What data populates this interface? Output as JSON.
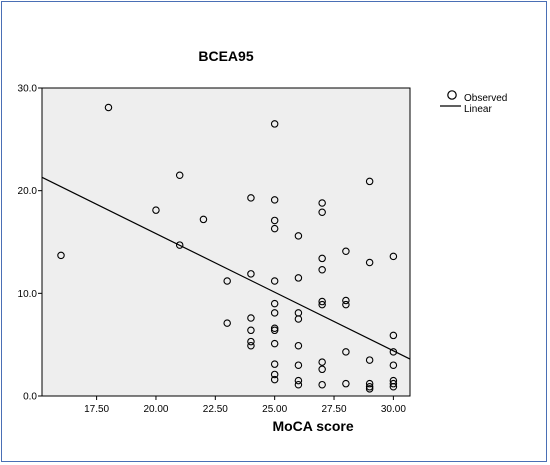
{
  "chart_data": {
    "type": "scatter",
    "title": "BCEA95",
    "xlabel": "MoCA score",
    "ylabel": "",
    "xlim": [
      15.2,
      30.7
    ],
    "ylim": [
      0,
      30
    ],
    "x_ticks": [
      "17.50",
      "20.00",
      "22.50",
      "25.00",
      "27.50",
      "30.00"
    ],
    "y_ticks": [
      "0.0",
      "10.0",
      "20.0",
      "30.0"
    ],
    "grid": false,
    "plot_background": "#eeeeee",
    "legend_position": "top-right",
    "legend": [
      {
        "label": "Observed",
        "symbol": "open-circle"
      },
      {
        "label": "Linear",
        "symbol": "line"
      }
    ],
    "series": [
      {
        "name": "Observed",
        "kind": "points",
        "points": [
          [
            16,
            13.7
          ],
          [
            18,
            28.1
          ],
          [
            20,
            18.1
          ],
          [
            21,
            21.5
          ],
          [
            21,
            14.7
          ],
          [
            22,
            17.2
          ],
          [
            23,
            11.2
          ],
          [
            23,
            7.1
          ],
          [
            24,
            19.3
          ],
          [
            24,
            11.9
          ],
          [
            24,
            7.6
          ],
          [
            24,
            6.4
          ],
          [
            24,
            5.3
          ],
          [
            24,
            4.9
          ],
          [
            25,
            26.5
          ],
          [
            25,
            19.1
          ],
          [
            25,
            17.1
          ],
          [
            25,
            16.3
          ],
          [
            25,
            11.2
          ],
          [
            25,
            9.0
          ],
          [
            25,
            8.1
          ],
          [
            25,
            6.6
          ],
          [
            25,
            6.4
          ],
          [
            25,
            5.1
          ],
          [
            25,
            3.1
          ],
          [
            25,
            2.1
          ],
          [
            25,
            1.6
          ],
          [
            26,
            15.6
          ],
          [
            26,
            11.5
          ],
          [
            26,
            8.1
          ],
          [
            26,
            7.5
          ],
          [
            26,
            4.9
          ],
          [
            26,
            3.0
          ],
          [
            26,
            1.5
          ],
          [
            26,
            1.1
          ],
          [
            27,
            18.8
          ],
          [
            27,
            17.9
          ],
          [
            27,
            13.4
          ],
          [
            27,
            12.3
          ],
          [
            27,
            9.2
          ],
          [
            27,
            8.9
          ],
          [
            27,
            3.3
          ],
          [
            27,
            2.6
          ],
          [
            27,
            1.1
          ],
          [
            28,
            14.1
          ],
          [
            28,
            9.3
          ],
          [
            28,
            8.9
          ],
          [
            28,
            4.3
          ],
          [
            28,
            1.2
          ],
          [
            29,
            20.9
          ],
          [
            29,
            13.0
          ],
          [
            29,
            3.5
          ],
          [
            29,
            1.2
          ],
          [
            29,
            0.9
          ],
          [
            29,
            0.7
          ],
          [
            30,
            13.6
          ],
          [
            30,
            5.9
          ],
          [
            30,
            4.3
          ],
          [
            30,
            3.0
          ],
          [
            30,
            1.5
          ],
          [
            30,
            1.2
          ],
          [
            30,
            0.9
          ]
        ]
      },
      {
        "name": "Linear",
        "kind": "line",
        "x": [
          15.2,
          30.7
        ],
        "y": [
          21.3,
          3.6
        ]
      }
    ]
  }
}
